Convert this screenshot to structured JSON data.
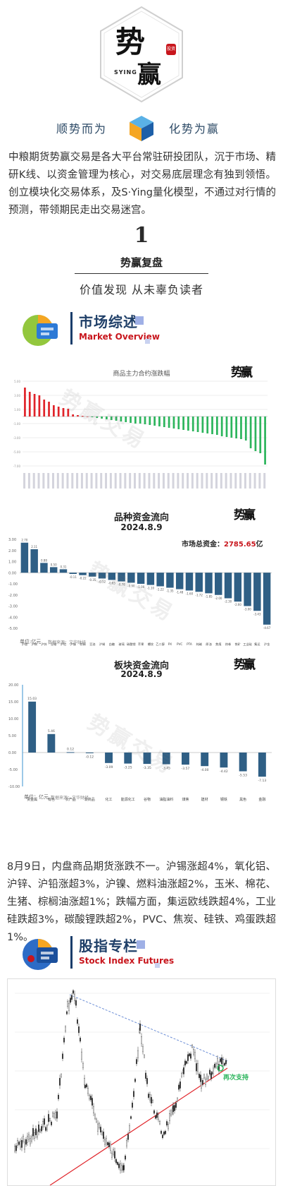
{
  "brand": {
    "logo_big": "势",
    "logo_small": "赢",
    "logo_latin": "SYING",
    "seal": "投资",
    "slogan_left": "顺势而为",
    "slogan_right": "化势为赢"
  },
  "intro": "中粮期货势赢交易是各大平台常驻研投团队，沉于市场、精研K线、以资金管理为核心，对交易底层理念有独到领悟。创立模块化交易体系，及S·Ying量化模型，不通过对行情的预测，带领期民走出交易迷宫。",
  "section": {
    "number": "1",
    "title": "势赢复盘",
    "subtitle": "价值发现 从未辜负读者"
  },
  "market_overview": {
    "title_cn": "市场综述",
    "title_en": "Market Overview"
  },
  "chart1": {
    "title": "商品主力合约涨跌幅",
    "watermark": "势赢交易",
    "seal": "势赢"
  },
  "chart2": {
    "title": "品种资金流向",
    "date": "2024.8.9",
    "total_label": "市场总资金：",
    "total_value": "2785.65",
    "total_unit": "亿",
    "unit_label": "单位:亿元",
    "source": "数据来源：文华财经",
    "watermark": "势赢交易",
    "seal": "势赢"
  },
  "chart3": {
    "title": "板块资金流向",
    "date": "2024.8.9",
    "unit_label": "单位：亿元",
    "source": "数据来源：文华财经",
    "watermark": "势赢交易",
    "seal": "势赢"
  },
  "summary": "8月9日，内盘商品期货涨跌不一。沪锡涨超4%，氧化铝、沪锌、沪铅涨超3%，沪镍、燃料油涨超2%，玉米、棉花、生猪、棕榈油涨超1%；跌幅方面，集运欧线跌超4%，工业硅跌超3%，碳酸锂跌超2%，PVC、焦炭、硅铁、鸡蛋跌超1%。",
  "stock_index": {
    "title_cn": "股指专栏",
    "title_en": "Stock Index Futures",
    "annotation": "再次支持"
  },
  "colors": {
    "accent_blue": "#1f3f68",
    "accent_red": "#c8161d",
    "up_red": "#e0242a",
    "down_green": "#2db55d",
    "bar_blue": "#2f5f85"
  },
  "chart_data": [
    {
      "type": "bar",
      "title": "商品主力合约涨跌幅",
      "values": [
        4.1,
        3.5,
        3.2,
        3.0,
        2.4,
        2.1,
        1.6,
        1.4,
        1.2,
        1.1,
        0.3,
        0.2,
        0.1,
        0.0,
        -0.1,
        -0.2,
        -0.3,
        -0.4,
        -0.5,
        -0.6,
        -0.7,
        -0.8,
        -0.9,
        -1.0,
        -1.0,
        -1.1,
        -1.2,
        -1.3,
        -1.4,
        -1.5,
        -1.6,
        -1.7,
        -1.8,
        -1.9,
        -2.0,
        -2.1,
        -2.2,
        -2.3,
        -2.4,
        -2.5,
        -2.6,
        -2.8,
        -2.9,
        -3.0,
        -3.1,
        -3.2,
        -3.4,
        -4.5,
        -4.9,
        -5.2,
        -6.8
      ]
    },
    {
      "type": "bar",
      "title": "品种资金流向",
      "categories": [
        "沪银",
        "沪铜",
        "沪锌",
        "豆粕",
        "沪铝",
        "沪镍",
        "棕榈",
        "豆油",
        "沪锡",
        "白糖",
        "玻璃",
        "碳酸锂",
        "苹果",
        "螺纹",
        "乙二醇",
        "PX",
        "PVC",
        "PTA",
        "纯碱",
        "原油",
        "焦煤",
        "热卷",
        "铁矿",
        "工业硅",
        "集运",
        "沪金"
      ],
      "values": [
        2.7,
        2.11,
        0.88,
        0.5,
        0.31,
        -0.11,
        -0.22,
        -0.35,
        -0.52,
        -0.65,
        -0.78,
        -0.9,
        -1.0,
        -1.1,
        -1.22,
        -1.35,
        -1.48,
        -1.6,
        -1.72,
        -1.85,
        -2.0,
        -2.3,
        -2.6,
        -3.0,
        -3.43,
        -4.67
      ],
      "ylim": [
        -5,
        3
      ]
    },
    {
      "type": "bar",
      "title": "板块资金流向",
      "categories": [
        "贵金属",
        "有色",
        "农产品",
        "软商品",
        "化工",
        "能源化工",
        "谷物",
        "油脂油料",
        "煤焦",
        "建材",
        "钢铁",
        "黑色",
        "金融"
      ],
      "values": [
        15.03,
        5.46,
        0.12,
        -0.12,
        -3.09,
        -3.25,
        -3.35,
        -3.45,
        -3.57,
        -4.0,
        -4.42,
        -5.53,
        -7.13
      ],
      "ylim": [
        -10,
        20
      ]
    }
  ]
}
